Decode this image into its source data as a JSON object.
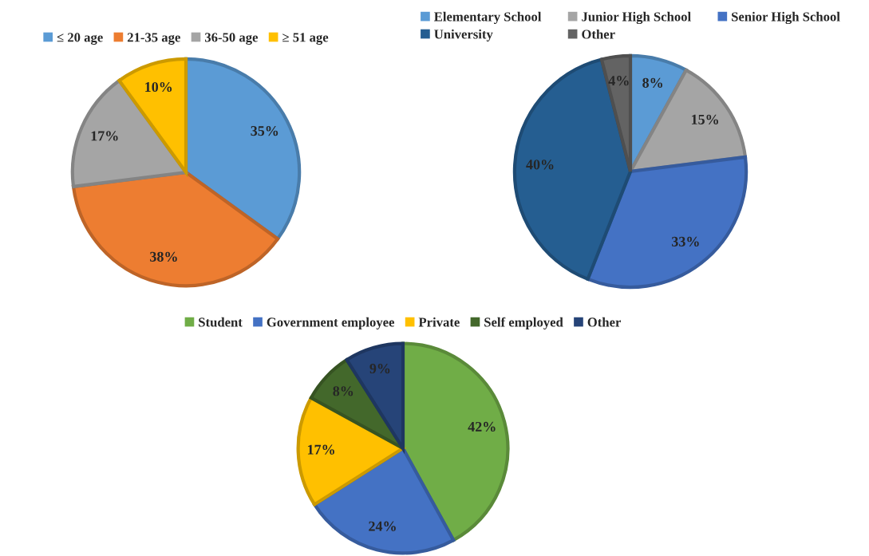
{
  "chart_data": [
    {
      "type": "pie",
      "categories": [
        "≤ 20 age",
        "21-35 age",
        "36-50 age",
        "≥ 51 age"
      ],
      "values": [
        35,
        38,
        17,
        10
      ],
      "colors": [
        "#5b9bd5",
        "#ed7d31",
        "#a5a5a5",
        "#ffc000"
      ],
      "value_labels": [
        "35%",
        "38%",
        "17%",
        "10%"
      ],
      "legend": "top"
    },
    {
      "type": "pie",
      "categories": [
        "Elementary School",
        "Junior High School",
        "Senior High School",
        "University",
        "Other"
      ],
      "values": [
        8,
        15,
        33,
        40,
        4
      ],
      "colors": [
        "#5b9bd5",
        "#a5a5a5",
        "#4472c4",
        "#255e91",
        "#636363"
      ],
      "value_labels": [
        "8%",
        "15%",
        "33%",
        "40%",
        "4%"
      ],
      "legend": "top"
    },
    {
      "type": "pie",
      "categories": [
        "Student",
        "Government employee",
        "Private",
        "Self employed",
        "Other"
      ],
      "values": [
        42,
        24,
        17,
        8,
        9
      ],
      "colors": [
        "#70ad47",
        "#4472c4",
        "#ffc000",
        "#43682b",
        "#264478"
      ],
      "value_labels": [
        "42%",
        "24%",
        "17%",
        "8%",
        "9%"
      ],
      "legend": "top"
    }
  ]
}
